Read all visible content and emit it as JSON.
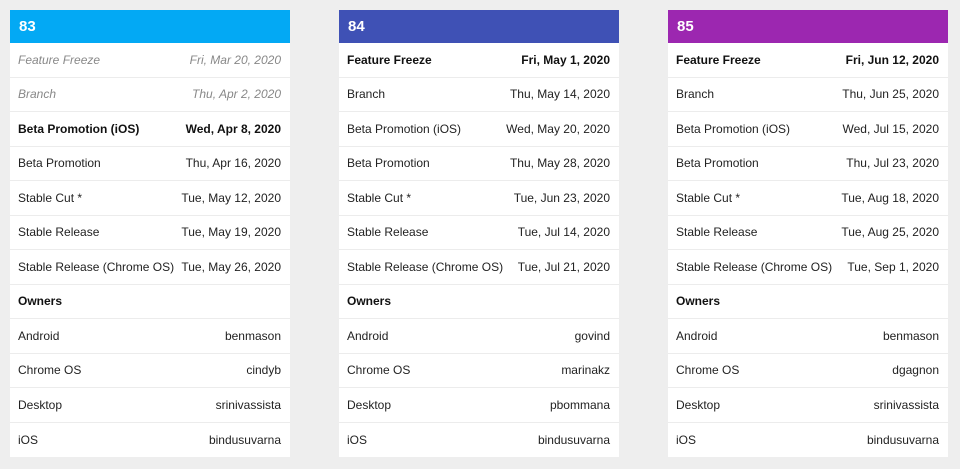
{
  "cards": [
    {
      "title": "83",
      "color": "#03a9f4",
      "milestones": [
        {
          "label": "Feature Freeze",
          "date": "Fri, Mar 20, 2020",
          "style": "past"
        },
        {
          "label": "Branch",
          "date": "Thu, Apr 2, 2020",
          "style": "past"
        },
        {
          "label": "Beta Promotion (iOS)",
          "date": "Wed, Apr 8, 2020",
          "style": "current"
        },
        {
          "label": "Beta Promotion",
          "date": "Thu, Apr 16, 2020",
          "style": "normal"
        },
        {
          "label": "Stable Cut *",
          "date": "Tue, May 12, 2020",
          "style": "normal"
        },
        {
          "label": "Stable Release",
          "date": "Tue, May 19, 2020",
          "style": "normal"
        },
        {
          "label": "Stable Release (Chrome OS)",
          "date": "Tue, May 26, 2020",
          "style": "normal"
        }
      ],
      "owners_heading": "Owners",
      "owners": [
        {
          "platform": "Android",
          "name": "benmason"
        },
        {
          "platform": "Chrome OS",
          "name": "cindyb"
        },
        {
          "platform": "Desktop",
          "name": "srinivassista"
        },
        {
          "platform": "iOS",
          "name": "bindusuvarna"
        }
      ]
    },
    {
      "title": "84",
      "color": "#3f51b5",
      "milestones": [
        {
          "label": "Feature Freeze",
          "date": "Fri, May 1, 2020",
          "style": "current"
        },
        {
          "label": "Branch",
          "date": "Thu, May 14, 2020",
          "style": "normal"
        },
        {
          "label": "Beta Promotion (iOS)",
          "date": "Wed, May 20, 2020",
          "style": "normal"
        },
        {
          "label": "Beta Promotion",
          "date": "Thu, May 28, 2020",
          "style": "normal"
        },
        {
          "label": "Stable Cut *",
          "date": "Tue, Jun 23, 2020",
          "style": "normal"
        },
        {
          "label": "Stable Release",
          "date": "Tue, Jul 14, 2020",
          "style": "normal"
        },
        {
          "label": "Stable Release (Chrome OS)",
          "date": "Tue, Jul 21, 2020",
          "style": "normal"
        }
      ],
      "owners_heading": "Owners",
      "owners": [
        {
          "platform": "Android",
          "name": "govind"
        },
        {
          "platform": "Chrome OS",
          "name": "marinakz"
        },
        {
          "platform": "Desktop",
          "name": "pbommana"
        },
        {
          "platform": "iOS",
          "name": "bindusuvarna"
        }
      ]
    },
    {
      "title": "85",
      "color": "#9c27b0",
      "milestones": [
        {
          "label": "Feature Freeze",
          "date": "Fri, Jun 12, 2020",
          "style": "current"
        },
        {
          "label": "Branch",
          "date": "Thu, Jun 25, 2020",
          "style": "normal"
        },
        {
          "label": "Beta Promotion (iOS)",
          "date": "Wed, Jul 15, 2020",
          "style": "normal"
        },
        {
          "label": "Beta Promotion",
          "date": "Thu, Jul 23, 2020",
          "style": "normal"
        },
        {
          "label": "Stable Cut *",
          "date": "Tue, Aug 18, 2020",
          "style": "normal"
        },
        {
          "label": "Stable Release",
          "date": "Tue, Aug 25, 2020",
          "style": "normal"
        },
        {
          "label": "Stable Release (Chrome OS)",
          "date": "Tue, Sep 1, 2020",
          "style": "normal"
        }
      ],
      "owners_heading": "Owners",
      "owners": [
        {
          "platform": "Android",
          "name": "benmason"
        },
        {
          "platform": "Chrome OS",
          "name": "dgagnon"
        },
        {
          "platform": "Desktop",
          "name": "srinivassista"
        },
        {
          "platform": "iOS",
          "name": "bindusuvarna"
        }
      ]
    }
  ]
}
